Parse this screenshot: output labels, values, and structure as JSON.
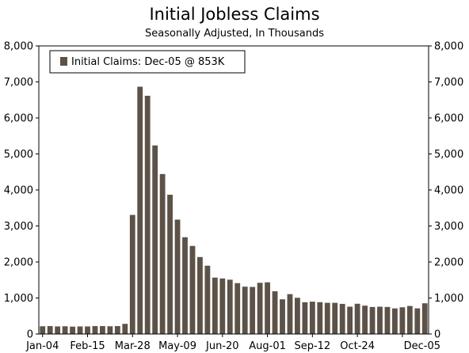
{
  "chart_data": {
    "type": "bar",
    "title": "Initial Jobless Claims",
    "subtitle": "Seasonally Adjusted, In Thousands",
    "legend": {
      "label": "Initial Claims: Dec-05 @ 853K",
      "placement": "top-left"
    },
    "colors": {
      "bar": "#5c5248"
    },
    "ylim": [
      0,
      8000
    ],
    "yticks": [
      0,
      1000,
      2000,
      3000,
      4000,
      5000,
      6000,
      7000,
      8000
    ],
    "ytick_labels": [
      "0",
      "1,000",
      "2,000",
      "3,000",
      "4,000",
      "5,000",
      "6,000",
      "7,000",
      "8,000"
    ],
    "xtick_labels": [
      "Jan-04",
      "Feb-15",
      "Mar-28",
      "May-09",
      "Jun-20",
      "Aug-01",
      "Sep-12",
      "Oct-24",
      "Dec-05"
    ],
    "xtick_every": 6,
    "grid": false,
    "series": [
      {
        "values": [
          215,
          220,
          210,
          215,
          205,
          210,
          210,
          220,
          220,
          215,
          220,
          282,
          3307,
          6867,
          6615,
          5237,
          4442,
          3867,
          3176,
          2687,
          2446,
          2137,
          1897,
          1566,
          1542,
          1508,
          1413,
          1314,
          1307,
          1422,
          1435,
          1186,
          963,
          1107,
          1006,
          881,
          898,
          884,
          866,
          866,
          837,
          758,
          840,
          787,
          751,
          758,
          751,
          711,
          742,
          778,
          712,
          853
        ]
      }
    ]
  }
}
